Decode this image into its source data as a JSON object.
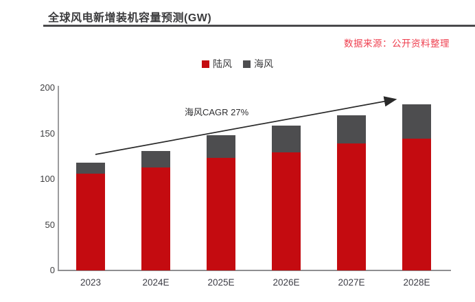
{
  "header": {
    "title": "全球风电新增装机容量预测(GW)",
    "source": "数据来源：公开资料整理"
  },
  "legend": {
    "items": [
      {
        "label": "陆风",
        "color": "#c40b10"
      },
      {
        "label": "海风",
        "color": "#4d4d4f"
      }
    ]
  },
  "annotation": {
    "text": "海风CAGR 27%"
  },
  "colors": {
    "onshore": "#c40b10",
    "offshore": "#4d4d4f",
    "source_text": "#ef4050",
    "title_rule": "#4a4a4c",
    "axis": "#8f8f91",
    "arrow": "#2a2a2a"
  },
  "chart_data": {
    "type": "bar",
    "stacked": true,
    "title": "全球风电新增装机容量预测(GW)",
    "categories": [
      "2023",
      "2024E",
      "2025E",
      "2026E",
      "2027E",
      "2028E"
    ],
    "series": [
      {
        "name": "陆风",
        "color": "#c40b10",
        "values": [
          106,
          113,
          123,
          129,
          139,
          144
        ]
      },
      {
        "name": "海风",
        "color": "#4d4d4f",
        "values": [
          12,
          18,
          25,
          30,
          31,
          38
        ]
      }
    ],
    "totals": [
      118,
      131,
      148,
      159,
      170,
      182
    ],
    "xlabel": "",
    "ylabel": "",
    "ylim": [
      0,
      200
    ],
    "yticks": [
      0,
      50,
      100,
      150,
      200
    ],
    "grid": false,
    "legend_position": "top-center",
    "annotation": "海风CAGR 27%"
  }
}
